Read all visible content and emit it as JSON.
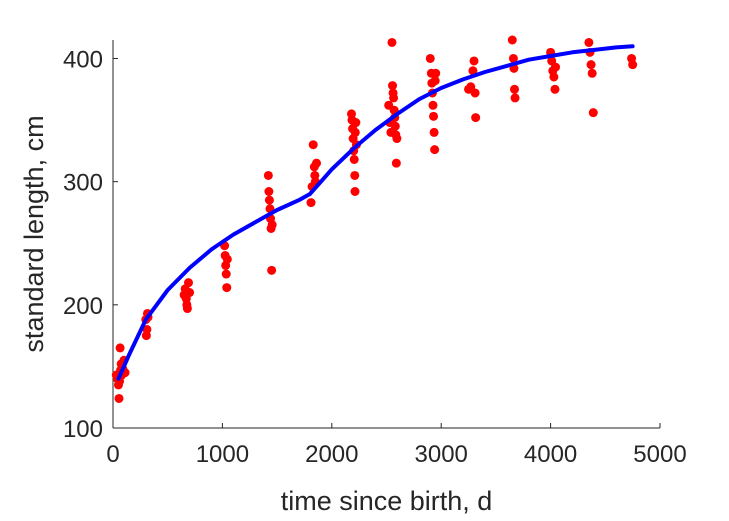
{
  "chart_data": {
    "type": "scatter",
    "xlabel": "time since birth, d",
    "ylabel": "standard length, cm",
    "xlim": [
      0,
      5000
    ],
    "ylim": [
      100,
      415
    ],
    "x_ticks": [
      0,
      1000,
      2000,
      3000,
      4000,
      5000
    ],
    "y_ticks": [
      100,
      200,
      300,
      400
    ],
    "grid": false,
    "colors": {
      "points": "#ff0000",
      "curve": "#0000ff",
      "axes": "#262626"
    },
    "series": [
      {
        "type": "scatter",
        "points": [
          [
            30,
            143
          ],
          [
            40,
            140
          ],
          [
            50,
            135
          ],
          [
            55,
            124
          ],
          [
            60,
            138
          ],
          [
            65,
            165
          ],
          [
            70,
            147
          ],
          [
            75,
            152
          ],
          [
            80,
            143
          ],
          [
            90,
            148
          ],
          [
            100,
            155
          ],
          [
            110,
            145
          ],
          [
            300,
            188
          ],
          [
            305,
            175
          ],
          [
            310,
            180
          ],
          [
            315,
            193
          ],
          [
            320,
            190
          ],
          [
            650,
            208
          ],
          [
            660,
            213
          ],
          [
            670,
            205
          ],
          [
            675,
            200
          ],
          [
            680,
            197
          ],
          [
            690,
            218
          ],
          [
            700,
            210
          ],
          [
            1020,
            248
          ],
          [
            1025,
            240
          ],
          [
            1030,
            232
          ],
          [
            1035,
            225
          ],
          [
            1040,
            214
          ],
          [
            1045,
            237
          ],
          [
            1420,
            305
          ],
          [
            1425,
            292
          ],
          [
            1430,
            285
          ],
          [
            1435,
            278
          ],
          [
            1440,
            270
          ],
          [
            1445,
            262
          ],
          [
            1450,
            228
          ],
          [
            1455,
            265
          ],
          [
            1810,
            283
          ],
          [
            1820,
            296
          ],
          [
            1830,
            330
          ],
          [
            1840,
            312
          ],
          [
            1845,
            305
          ],
          [
            1850,
            300
          ],
          [
            1860,
            315
          ],
          [
            2180,
            355
          ],
          [
            2185,
            350
          ],
          [
            2190,
            343
          ],
          [
            2195,
            335
          ],
          [
            2200,
            325
          ],
          [
            2205,
            318
          ],
          [
            2210,
            305
          ],
          [
            2212,
            292
          ],
          [
            2215,
            340
          ],
          [
            2220,
            348
          ],
          [
            2225,
            330
          ],
          [
            2520,
            362
          ],
          [
            2530,
            348
          ],
          [
            2540,
            340
          ],
          [
            2550,
            413
          ],
          [
            2555,
            378
          ],
          [
            2560,
            372
          ],
          [
            2565,
            368
          ],
          [
            2570,
            358
          ],
          [
            2575,
            352
          ],
          [
            2580,
            345
          ],
          [
            2585,
            338
          ],
          [
            2590,
            315
          ],
          [
            2595,
            335
          ],
          [
            2900,
            400
          ],
          [
            2910,
            388
          ],
          [
            2915,
            380
          ],
          [
            2920,
            372
          ],
          [
            2925,
            362
          ],
          [
            2930,
            353
          ],
          [
            2935,
            340
          ],
          [
            2940,
            326
          ],
          [
            2945,
            382
          ],
          [
            2950,
            388
          ],
          [
            3250,
            375
          ],
          [
            3270,
            377
          ],
          [
            3290,
            390
          ],
          [
            3300,
            398
          ],
          [
            3310,
            372
          ],
          [
            3315,
            352
          ],
          [
            3650,
            415
          ],
          [
            3660,
            400
          ],
          [
            3665,
            392
          ],
          [
            3670,
            375
          ],
          [
            3675,
            368
          ],
          [
            4000,
            405
          ],
          [
            4010,
            398
          ],
          [
            4020,
            390
          ],
          [
            4030,
            385
          ],
          [
            4040,
            375
          ],
          [
            4045,
            393
          ],
          [
            4350,
            413
          ],
          [
            4360,
            405
          ],
          [
            4370,
            395
          ],
          [
            4380,
            388
          ],
          [
            4390,
            356
          ],
          [
            4740,
            400
          ],
          [
            4750,
            395
          ]
        ]
      },
      {
        "type": "line",
        "points": [
          [
            50,
            140
          ],
          [
            150,
            160
          ],
          [
            300,
            188
          ],
          [
            500,
            212
          ],
          [
            700,
            230
          ],
          [
            900,
            245
          ],
          [
            1100,
            257
          ],
          [
            1300,
            267
          ],
          [
            1500,
            277
          ],
          [
            1700,
            285
          ],
          [
            1800,
            290
          ],
          [
            1900,
            300
          ],
          [
            2000,
            310
          ],
          [
            2200,
            327
          ],
          [
            2400,
            342
          ],
          [
            2600,
            355
          ],
          [
            2800,
            367
          ],
          [
            3000,
            376
          ],
          [
            3200,
            383
          ],
          [
            3400,
            389
          ],
          [
            3600,
            394
          ],
          [
            3800,
            399
          ],
          [
            4000,
            402
          ],
          [
            4200,
            405
          ],
          [
            4400,
            407
          ],
          [
            4600,
            409
          ],
          [
            4750,
            410
          ]
        ]
      }
    ]
  }
}
